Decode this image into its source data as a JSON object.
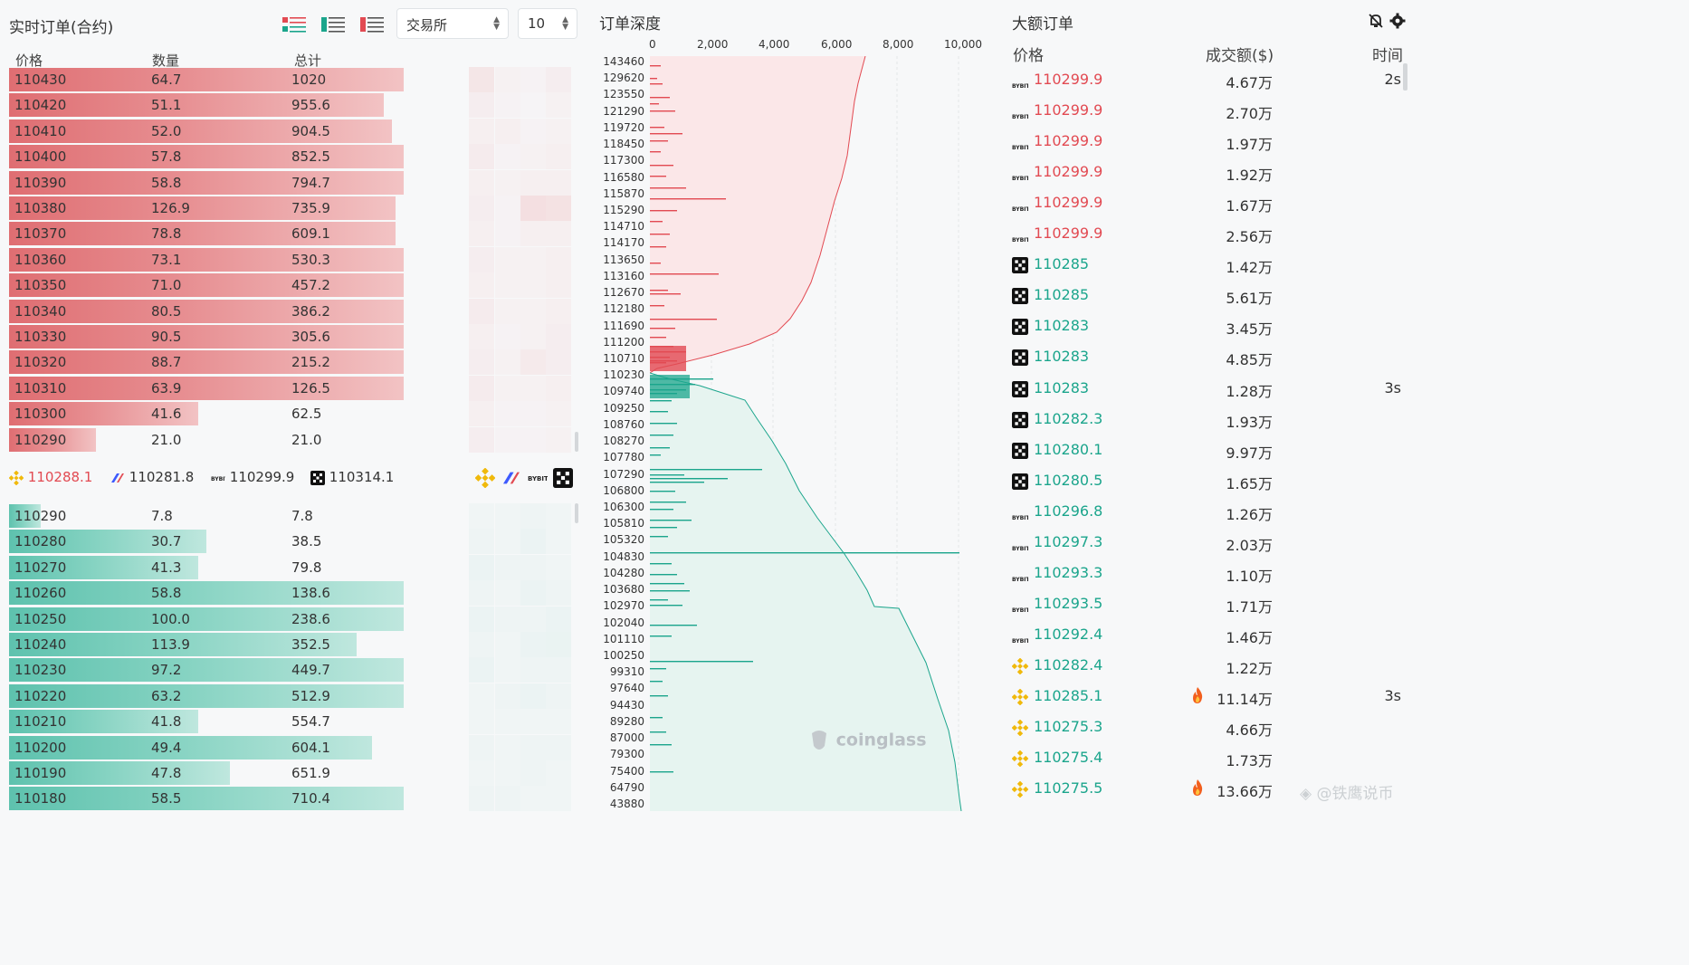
{
  "orderbook": {
    "title": "实时订单(合约)",
    "exchange_select": "交易所",
    "depth_select": "10",
    "headers": {
      "price": "价格",
      "qty": "数量",
      "total": "总计"
    },
    "asks": [
      {
        "price": "110430",
        "qty": "64.7",
        "total": "1020",
        "fill": 1.0
      },
      {
        "price": "110420",
        "qty": "51.1",
        "total": "955.6",
        "fill": 0.95
      },
      {
        "price": "110410",
        "qty": "52.0",
        "total": "904.5",
        "fill": 0.97
      },
      {
        "price": "110400",
        "qty": "57.8",
        "total": "852.5",
        "fill": 1.0
      },
      {
        "price": "110390",
        "qty": "58.8",
        "total": "794.7",
        "fill": 1.0
      },
      {
        "price": "110380",
        "qty": "126.9",
        "total": "735.9",
        "fill": 0.98
      },
      {
        "price": "110370",
        "qty": "78.8",
        "total": "609.1",
        "fill": 0.98
      },
      {
        "price": "110360",
        "qty": "73.1",
        "total": "530.3",
        "fill": 1.0
      },
      {
        "price": "110350",
        "qty": "71.0",
        "total": "457.2",
        "fill": 1.0
      },
      {
        "price": "110340",
        "qty": "80.5",
        "total": "386.2",
        "fill": 1.0
      },
      {
        "price": "110330",
        "qty": "90.5",
        "total": "305.6",
        "fill": 1.0
      },
      {
        "price": "110320",
        "qty": "88.7",
        "total": "215.2",
        "fill": 1.0
      },
      {
        "price": "110310",
        "qty": "63.9",
        "total": "126.5",
        "fill": 1.0
      },
      {
        "price": "110300",
        "qty": "41.6",
        "total": "62.5",
        "fill": 0.48
      },
      {
        "price": "110290",
        "qty": "21.0",
        "total": "21.0",
        "fill": 0.22
      }
    ],
    "bids": [
      {
        "price": "110290",
        "qty": "7.8",
        "total": "7.8",
        "fill": 0.08
      },
      {
        "price": "110280",
        "qty": "30.7",
        "total": "38.5",
        "fill": 0.5
      },
      {
        "price": "110270",
        "qty": "41.3",
        "total": "79.8",
        "fill": 0.48
      },
      {
        "price": "110260",
        "qty": "58.8",
        "total": "138.6",
        "fill": 1.0
      },
      {
        "price": "110250",
        "qty": "100.0",
        "total": "238.6",
        "fill": 1.0
      },
      {
        "price": "110240",
        "qty": "113.9",
        "total": "352.5",
        "fill": 0.88
      },
      {
        "price": "110230",
        "qty": "97.2",
        "total": "449.7",
        "fill": 1.0
      },
      {
        "price": "110220",
        "qty": "63.2",
        "total": "512.9",
        "fill": 1.0
      },
      {
        "price": "110210",
        "qty": "41.8",
        "total": "554.7",
        "fill": 0.48
      },
      {
        "price": "110200",
        "qty": "49.4",
        "total": "604.1",
        "fill": 0.92
      },
      {
        "price": "110190",
        "qty": "47.8",
        "total": "651.9",
        "fill": 0.56
      },
      {
        "price": "110180",
        "qty": "58.5",
        "total": "710.4",
        "fill": 1.0
      }
    ],
    "exchanges": [
      {
        "name": "binance",
        "price": "110288.1",
        "color": "#e24a52"
      },
      {
        "name": "bitget",
        "price": "110281.8",
        "color": "#333333"
      },
      {
        "name": "bybit",
        "price": "110299.9",
        "color": "#333333"
      },
      {
        "name": "okx",
        "price": "110314.1",
        "color": "#333333"
      }
    ]
  },
  "depth": {
    "title": "订单深度",
    "x_ticks": [
      "0",
      "2,000",
      "4,000",
      "6,000",
      "8,000",
      "10,000"
    ],
    "y_labels": [
      "143460",
      "129620",
      "123550",
      "121290",
      "119720",
      "118450",
      "117300",
      "116580",
      "115870",
      "115290",
      "114710",
      "114170",
      "113650",
      "113160",
      "112670",
      "112180",
      "111690",
      "111200",
      "110710",
      "110230",
      "109740",
      "109250",
      "108760",
      "108270",
      "107780",
      "107290",
      "106800",
      "106300",
      "105810",
      "105320",
      "104830",
      "104280",
      "103680",
      "102970",
      "102040",
      "101110",
      "100250",
      "99310",
      "97640",
      "94430",
      "89280",
      "87000",
      "79300",
      "75400",
      "64790",
      "43880"
    ],
    "watermark": "coinglass",
    "ask_color": "#e24a52",
    "bid_color": "#1ba58c"
  },
  "big_orders": {
    "title": "大额订单",
    "headers": {
      "price": "价格",
      "amount": "成交额($)",
      "time": "时间"
    },
    "rows": [
      {
        "ex": "bybit",
        "price": "110299.9",
        "side": "red",
        "amount": "4.67万",
        "fire": false,
        "time": "2s"
      },
      {
        "ex": "bybit",
        "price": "110299.9",
        "side": "red",
        "amount": "2.70万",
        "fire": false,
        "time": ""
      },
      {
        "ex": "bybit",
        "price": "110299.9",
        "side": "red",
        "amount": "1.97万",
        "fire": false,
        "time": ""
      },
      {
        "ex": "bybit",
        "price": "110299.9",
        "side": "red",
        "amount": "1.92万",
        "fire": false,
        "time": ""
      },
      {
        "ex": "bybit",
        "price": "110299.9",
        "side": "red",
        "amount": "1.67万",
        "fire": false,
        "time": ""
      },
      {
        "ex": "bybit",
        "price": "110299.9",
        "side": "red",
        "amount": "2.56万",
        "fire": false,
        "time": ""
      },
      {
        "ex": "okx",
        "price": "110285",
        "side": "green",
        "amount": "1.42万",
        "fire": false,
        "time": ""
      },
      {
        "ex": "okx",
        "price": "110285",
        "side": "green",
        "amount": "5.61万",
        "fire": false,
        "time": ""
      },
      {
        "ex": "okx",
        "price": "110283",
        "side": "green",
        "amount": "3.45万",
        "fire": false,
        "time": ""
      },
      {
        "ex": "okx",
        "price": "110283",
        "side": "green",
        "amount": "4.85万",
        "fire": false,
        "time": ""
      },
      {
        "ex": "okx",
        "price": "110283",
        "side": "green",
        "amount": "1.28万",
        "fire": false,
        "time": "3s"
      },
      {
        "ex": "okx",
        "price": "110282.3",
        "side": "green",
        "amount": "1.93万",
        "fire": false,
        "time": ""
      },
      {
        "ex": "okx",
        "price": "110280.1",
        "side": "green",
        "amount": "9.97万",
        "fire": false,
        "time": ""
      },
      {
        "ex": "okx",
        "price": "110280.5",
        "side": "green",
        "amount": "1.65万",
        "fire": false,
        "time": ""
      },
      {
        "ex": "bybit",
        "price": "110296.8",
        "side": "green",
        "amount": "1.26万",
        "fire": false,
        "time": ""
      },
      {
        "ex": "bybit",
        "price": "110297.3",
        "side": "green",
        "amount": "2.03万",
        "fire": false,
        "time": ""
      },
      {
        "ex": "bybit",
        "price": "110293.3",
        "side": "green",
        "amount": "1.10万",
        "fire": false,
        "time": ""
      },
      {
        "ex": "bybit",
        "price": "110293.5",
        "side": "green",
        "amount": "1.71万",
        "fire": false,
        "time": ""
      },
      {
        "ex": "bybit",
        "price": "110292.4",
        "side": "green",
        "amount": "1.46万",
        "fire": false,
        "time": ""
      },
      {
        "ex": "binance",
        "price": "110282.4",
        "side": "green",
        "amount": "1.22万",
        "fire": false,
        "time": ""
      },
      {
        "ex": "binance",
        "price": "110285.1",
        "side": "green",
        "amount": "11.14万",
        "fire": true,
        "time": "3s"
      },
      {
        "ex": "binance",
        "price": "110275.3",
        "side": "green",
        "amount": "4.66万",
        "fire": false,
        "time": ""
      },
      {
        "ex": "binance",
        "price": "110275.4",
        "side": "green",
        "amount": "1.73万",
        "fire": false,
        "time": ""
      },
      {
        "ex": "binance",
        "price": "110275.5",
        "side": "green",
        "amount": "13.66万",
        "fire": true,
        "time": ""
      }
    ]
  },
  "watermark": "@铁鹰说币"
}
